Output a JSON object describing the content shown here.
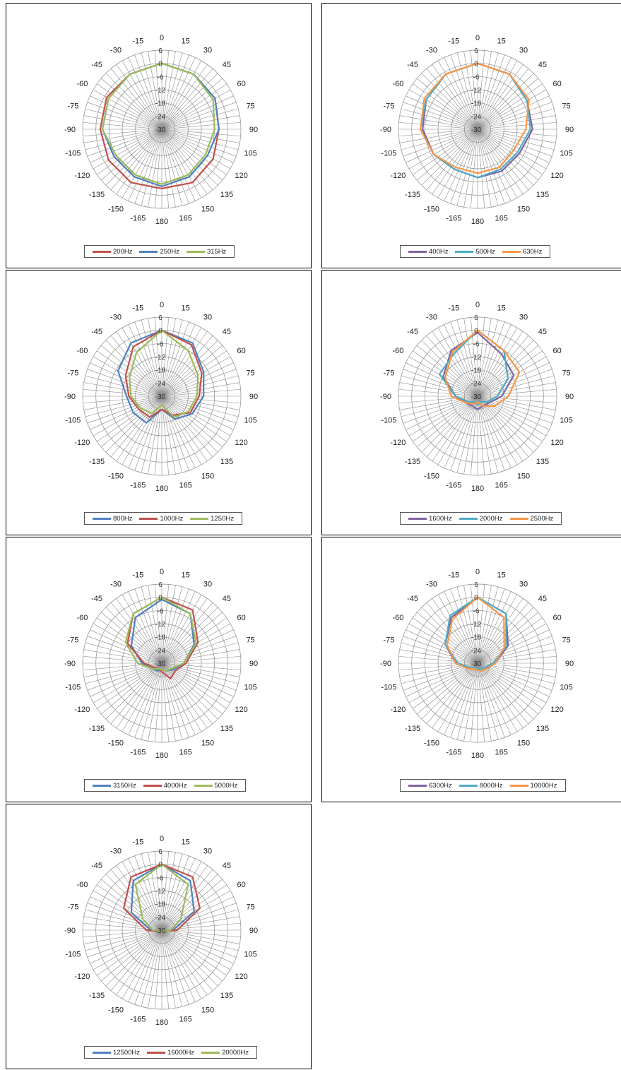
{
  "chart_data": [
    {
      "type": "polar-line",
      "angle_labels": [
        "0",
        "15",
        "30",
        "45",
        "60",
        "75",
        "90",
        "105",
        "120",
        "135",
        "150",
        "165",
        "180",
        "-165",
        "-150",
        "-135",
        "-120",
        "-105",
        "-90",
        "-75",
        "-60",
        "-45",
        "-30",
        "-15"
      ],
      "radial_labels": [
        "6",
        "0",
        "-6",
        "-12",
        "-18",
        "-24",
        "-30"
      ],
      "rlim": [
        -30,
        6
      ],
      "grid": true,
      "legend": "bottom",
      "series": [
        {
          "name": "200Hz",
          "color": "#c0504d",
          "theta": [
            0,
            30,
            60,
            90,
            120,
            150,
            180,
            -150,
            -120,
            -90,
            -60,
            -30
          ],
          "r": [
            0,
            -1,
            -2,
            -4,
            -3,
            -2,
            -3,
            -2,
            -2,
            -2,
            -1,
            -1
          ]
        },
        {
          "name": "250Hz",
          "color": "#4f81bd",
          "theta": [
            0,
            30,
            60,
            90,
            120,
            150,
            180,
            -150,
            -120,
            -90,
            -60,
            -30
          ],
          "r": [
            0,
            -1,
            -2,
            -4,
            -6,
            -5,
            -4,
            -5,
            -5,
            -3,
            -2,
            -1
          ]
        },
        {
          "name": "315Hz",
          "color": "#9bbb59",
          "theta": [
            0,
            30,
            60,
            90,
            120,
            150,
            180,
            -150,
            -120,
            -90,
            -60,
            -30
          ],
          "r": [
            0,
            -1,
            -3,
            -6,
            -7,
            -6,
            -5,
            -6,
            -6,
            -3,
            -2,
            -1
          ]
        }
      ]
    },
    {
      "type": "polar-line",
      "angle_labels": [
        "0",
        "15",
        "30",
        "45",
        "60",
        "75",
        "90",
        "105",
        "120",
        "135",
        "150",
        "165",
        "180",
        "-165",
        "-150",
        "-135",
        "-120",
        "-105",
        "-90",
        "-75",
        "-60",
        "-45",
        "-30",
        "-15"
      ],
      "radial_labels": [
        "6",
        "0",
        "-6",
        "-12",
        "-18",
        "-24",
        "-30"
      ],
      "rlim": [
        -30,
        6
      ],
      "grid": true,
      "legend": "bottom",
      "series": [
        {
          "name": "400Hz",
          "color": "#8064a2",
          "theta": [
            0,
            30,
            60,
            90,
            120,
            150,
            180,
            -150,
            -120,
            -90,
            -60,
            -30
          ],
          "r": [
            0,
            -1,
            -4,
            -5,
            -8,
            -8,
            -8,
            -9,
            -7,
            -5,
            -3,
            -1
          ]
        },
        {
          "name": "500Hz",
          "color": "#4bacc6",
          "theta": [
            0,
            30,
            60,
            90,
            120,
            150,
            180,
            -150,
            -120,
            -90,
            -60,
            -30
          ],
          "r": [
            0,
            -1,
            -4,
            -6,
            -9,
            -9,
            -8,
            -9,
            -7,
            -4,
            -3,
            -1
          ]
        },
        {
          "name": "630Hz",
          "color": "#f79646",
          "theta": [
            0,
            30,
            60,
            90,
            120,
            150,
            180,
            -150,
            -120,
            -90,
            -60,
            -30
          ],
          "r": [
            0,
            -1,
            -3,
            -8,
            -11,
            -10,
            -10,
            -10,
            -7,
            -4,
            -2,
            -1
          ]
        }
      ]
    },
    {
      "type": "polar-line",
      "angle_labels": [
        "0",
        "15",
        "30",
        "45",
        "60",
        "75",
        "90",
        "105",
        "120",
        "135",
        "150",
        "165",
        "180",
        "-165",
        "-150",
        "-135",
        "-120",
        "-105",
        "-90",
        "-75",
        "-60",
        "-45",
        "-30",
        "-15"
      ],
      "radial_labels": [
        "6",
        "0",
        "-6",
        "-12",
        "-18",
        "-24",
        "-30"
      ],
      "rlim": [
        -30,
        6
      ],
      "grid": true,
      "legend": "bottom",
      "series": [
        {
          "name": "800Hz",
          "color": "#4f81bd",
          "theta": [
            0,
            30,
            60,
            90,
            120,
            150,
            180,
            -150,
            -120,
            -90,
            -60,
            -30
          ],
          "r": [
            0,
            -2,
            -8,
            -11,
            -14,
            -18,
            -24,
            -16,
            -15,
            -14,
            -7,
            -2
          ]
        },
        {
          "name": "1000Hz",
          "color": "#c0504d",
          "theta": [
            0,
            30,
            60,
            90,
            120,
            150,
            180,
            -150,
            -120,
            -90,
            -60,
            -30
          ],
          "r": [
            0,
            -3,
            -9,
            -13,
            -15,
            -20,
            -24,
            -19,
            -18,
            -15,
            -11,
            -4
          ]
        },
        {
          "name": "1250Hz",
          "color": "#9bbb59",
          "theta": [
            0,
            30,
            60,
            90,
            120,
            150,
            180,
            -150,
            -120,
            -90,
            -60,
            -30
          ],
          "r": [
            0,
            -6,
            -11,
            -14,
            -16,
            -19,
            -26,
            -21,
            -19,
            -16,
            -13,
            -7
          ]
        }
      ]
    },
    {
      "type": "polar-line",
      "angle_labels": [
        "0",
        "15",
        "30",
        "45",
        "60",
        "75",
        "90",
        "105",
        "120",
        "135",
        "150",
        "165",
        "180",
        "-165",
        "-150",
        "-135",
        "-120",
        "-105",
        "-90",
        "-75",
        "-60",
        "-45",
        "-30",
        "-15"
      ],
      "radial_labels": [
        "6",
        "0",
        "-6",
        "-12",
        "-18",
        "-24",
        "-30"
      ],
      "rlim": [
        -30,
        6
      ],
      "grid": true,
      "legend": "bottom",
      "series": [
        {
          "name": "1600Hz",
          "color": "#8064a2",
          "theta": [
            0,
            30,
            60,
            90,
            120,
            150,
            180,
            -150,
            -120,
            -90,
            -60,
            -30
          ],
          "r": [
            -1,
            -8,
            -11,
            -19,
            -24,
            -25,
            -24,
            -25,
            -24,
            -20,
            -12,
            -6
          ]
        },
        {
          "name": "2000Hz",
          "color": "#4bacc6",
          "theta": [
            0,
            30,
            60,
            90,
            120,
            150,
            180,
            -150,
            -120,
            -90,
            -60,
            -30
          ],
          "r": [
            0,
            -6,
            -14,
            -21,
            -25,
            -27,
            -26,
            -27,
            -25,
            -20,
            -10,
            -8
          ]
        },
        {
          "name": "2500Hz",
          "color": "#f79646",
          "theta": [
            0,
            30,
            60,
            90,
            120,
            150,
            180,
            -150,
            -120,
            -90,
            -60,
            -30
          ],
          "r": [
            0,
            -6,
            -8,
            -16,
            -21,
            -25,
            -27,
            -26,
            -24,
            -18,
            -13,
            -7
          ]
        }
      ]
    },
    {
      "type": "polar-line",
      "angle_labels": [
        "0",
        "15",
        "30",
        "45",
        "60",
        "75",
        "90",
        "105",
        "120",
        "135",
        "150",
        "165",
        "180",
        "-165",
        "-150",
        "-135",
        "-120",
        "-105",
        "-90",
        "-75",
        "-60",
        "-45",
        "-30",
        "-15"
      ],
      "radial_labels": [
        "6",
        "0",
        "-6",
        "-12",
        "-18",
        "-24",
        "-30"
      ],
      "rlim": [
        -30,
        6
      ],
      "grid": true,
      "legend": "bottom",
      "series": [
        {
          "name": "3150Hz",
          "color": "#4f81bd",
          "theta": [
            0,
            30,
            60,
            90,
            120,
            150,
            180,
            -150,
            -120,
            -90,
            -60,
            -30
          ],
          "r": [
            -1,
            -4,
            -13,
            -20,
            -24,
            -26,
            -27,
            -26,
            -25,
            -21,
            -14,
            -6
          ]
        },
        {
          "name": "4000Hz",
          "color": "#c0504d",
          "theta": [
            0,
            30,
            60,
            90,
            120,
            150,
            180,
            -150,
            -120,
            -90,
            -60,
            -30
          ],
          "r": [
            0,
            -2,
            -11,
            -19,
            -23,
            -22,
            -26,
            -27,
            -26,
            -22,
            -12,
            -4
          ]
        },
        {
          "name": "5000Hz",
          "color": "#9bbb59",
          "theta": [
            0,
            30,
            60,
            90,
            120,
            150,
            180,
            -150,
            -120,
            -90,
            -60,
            -30
          ],
          "r": [
            0,
            -4,
            -12,
            -20,
            -25,
            -26,
            -27,
            -27,
            -25,
            -19,
            -11,
            -4
          ]
        }
      ]
    },
    {
      "type": "polar-line",
      "angle_labels": [
        "0",
        "15",
        "30",
        "45",
        "60",
        "75",
        "90",
        "105",
        "120",
        "135",
        "150",
        "165",
        "180",
        "-165",
        "-150",
        "-135",
        "-120",
        "-105",
        "-90",
        "-75",
        "-60",
        "-45",
        "-30",
        "-15"
      ],
      "radial_labels": [
        "6",
        "0",
        "-6",
        "-12",
        "-18",
        "-24",
        "-30"
      ],
      "rlim": [
        -30,
        6
      ],
      "grid": true,
      "legend": "bottom",
      "series": [
        {
          "name": "6300Hz",
          "color": "#8064a2",
          "theta": [
            0,
            30,
            60,
            90,
            120,
            150,
            180,
            -150,
            -120,
            -90,
            -60,
            -30
          ],
          "r": [
            0,
            -4,
            -14,
            -22,
            -26,
            -27,
            -27,
            -27,
            -26,
            -20,
            -13,
            -6
          ]
        },
        {
          "name": "8000Hz",
          "color": "#4bacc6",
          "theta": [
            0,
            30,
            60,
            90,
            120,
            150,
            180,
            -150,
            -120,
            -90,
            -60,
            -30
          ],
          "r": [
            0,
            -4,
            -15,
            -23,
            -26,
            -27,
            -28,
            -27,
            -26,
            -21,
            -13,
            -5
          ]
        },
        {
          "name": "10000Hz",
          "color": "#f79646",
          "theta": [
            0,
            30,
            60,
            90,
            120,
            150,
            180,
            -150,
            -120,
            -90,
            -60,
            -30
          ],
          "r": [
            0,
            -6,
            -16,
            -22,
            -25,
            -26,
            -27,
            -27,
            -25,
            -20,
            -14,
            -7
          ]
        }
      ]
    },
    {
      "type": "polar-line",
      "angle_labels": [
        "0",
        "15",
        "30",
        "45",
        "60",
        "75",
        "90",
        "105",
        "120",
        "135",
        "150",
        "165",
        "180",
        "-165",
        "-150",
        "-135",
        "-120",
        "-105",
        "-90",
        "-75",
        "-60",
        "-45",
        "-30",
        "-15"
      ],
      "radial_labels": [
        "6",
        "0",
        "-6",
        "-12",
        "-18",
        "-24",
        "-30"
      ],
      "rlim": [
        -30,
        6
      ],
      "grid": true,
      "legend": "bottom",
      "series": [
        {
          "name": "12500Hz",
          "color": "#4f81bd",
          "theta": [
            0,
            30,
            60,
            90,
            120,
            150,
            180,
            -150,
            -120,
            -90,
            -60,
            -30
          ],
          "r": [
            0,
            -4,
            -13,
            -25,
            -29,
            -29,
            -29,
            -29,
            -29,
            -25,
            -14,
            -4
          ]
        },
        {
          "name": "16000Hz",
          "color": "#c0504d",
          "theta": [
            0,
            30,
            60,
            90,
            120,
            150,
            180,
            -150,
            -120,
            -90,
            -60,
            -30
          ],
          "r": [
            0,
            -2,
            -10,
            -23,
            -29,
            -29,
            -29,
            -29,
            -29,
            -23,
            -10,
            -2
          ]
        },
        {
          "name": "20000Hz",
          "color": "#9bbb59",
          "theta": [
            0,
            30,
            60,
            90,
            120,
            150,
            180,
            -150,
            -120,
            -90,
            -60,
            -30
          ],
          "r": [
            0,
            -6,
            -20,
            -26,
            -29,
            -29,
            -29,
            -29,
            -29,
            -26,
            -20,
            -6
          ]
        }
      ]
    }
  ]
}
